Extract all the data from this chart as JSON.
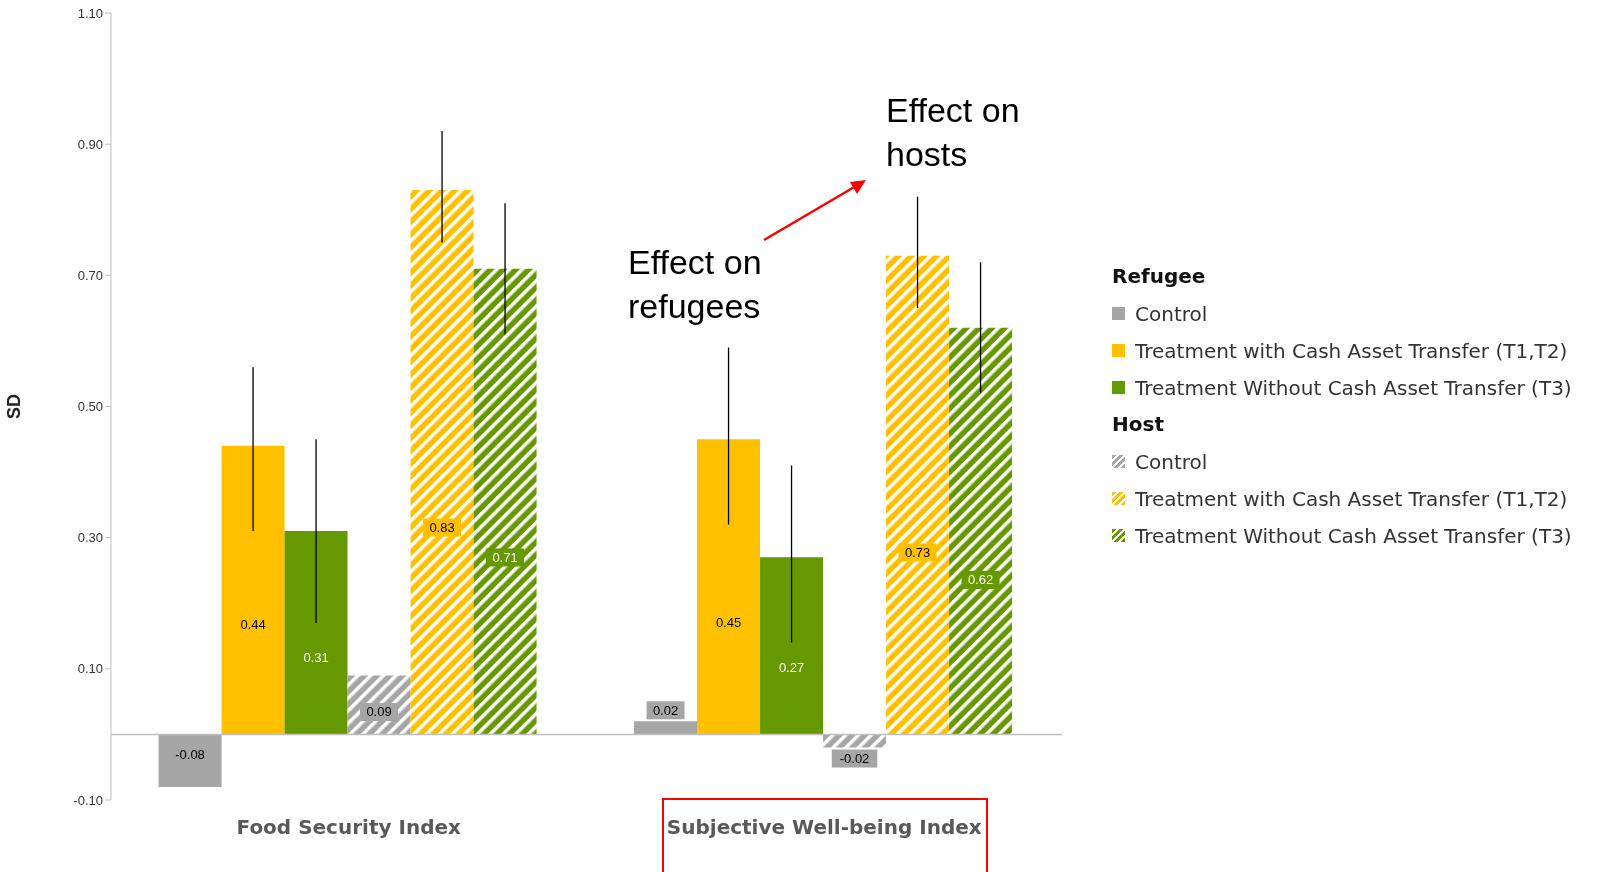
{
  "chart_data": {
    "type": "bar",
    "ylabel": "SD",
    "categories": [
      "Food Security Index",
      "Subjective Well-being Index"
    ],
    "series": [
      {
        "name": "Control",
        "color": "#a6a6a6",
        "values": [
          -0.08,
          0.02
        ]
      },
      {
        "name": "Treatment with Cash Asset Transfer (T1,T2)",
        "color": "#ffc000",
        "values": [
          0.44,
          0.45
        ],
        "errors": [
          [
            0.31,
            0.56
          ],
          [
            0.32,
            0.59
          ]
        ]
      },
      {
        "name": "Treatment Without Cash Asset Transfer (T3)",
        "color": "#669900",
        "values": [
          0.31,
          0.27
        ],
        "errors": [
          [
            0.17,
            0.45
          ],
          [
            0.14,
            0.41
          ]
        ]
      },
      {
        "name": "Control",
        "color": "#a6a6a6",
        "values": [
          0.09,
          -0.02
        ]
      },
      {
        "name": "Treatment with Cash Asset Transfer (T1,T2)",
        "color": "#ffc000",
        "values": [
          0.83,
          0.73
        ],
        "errors": [
          [
            0.75,
            0.92
          ],
          [
            0.65,
            0.82
          ]
        ]
      },
      {
        "name": "Treatment Without Cash Asset Transfer (T3)",
        "color": "#669900",
        "values": [
          0.71,
          0.62
        ],
        "errors": [
          [
            0.61,
            0.81
          ],
          [
            0.52,
            0.72
          ]
        ]
      }
    ],
    "ylim": [
      -0.1,
      1.1
    ],
    "yticks": [
      {
        "value": -0.1,
        "label": "-0.10"
      },
      {
        "value": 0.1,
        "label": "0.10"
      },
      {
        "value": 0.3,
        "label": "0.30"
      },
      {
        "value": 0.5,
        "label": "0.50"
      },
      {
        "value": 0.7,
        "label": "0.70"
      },
      {
        "value": 0.9,
        "label": "0.90"
      },
      {
        "value": 1.1,
        "label": "1.10"
      }
    ],
    "data_labels": true,
    "legend": "right",
    "annotations": [
      "Effect on refugees",
      "Effect on hosts",
      "Refugee",
      "Host"
    ]
  }
}
